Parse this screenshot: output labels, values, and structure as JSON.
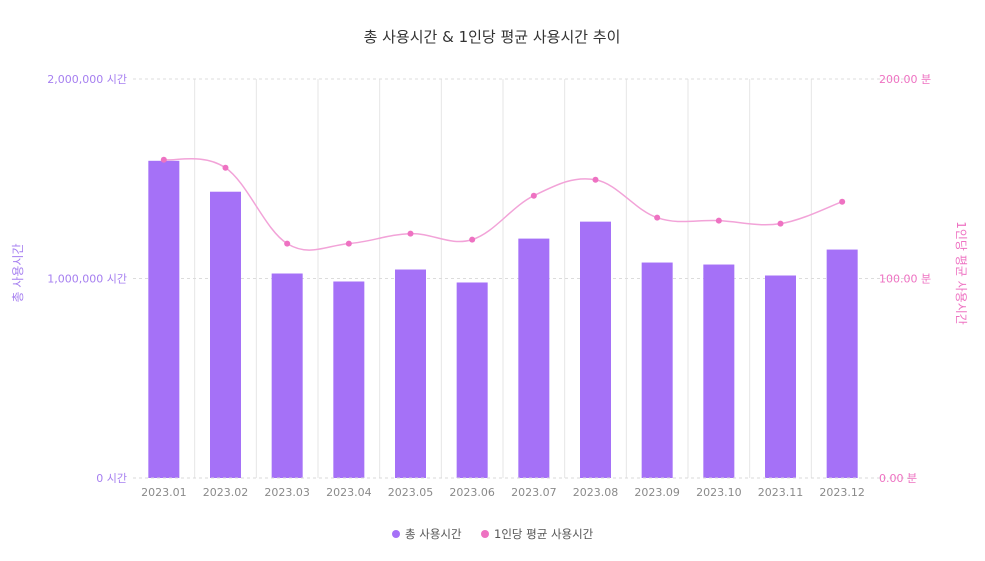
{
  "chart_data": {
    "type": "bar",
    "title": "총 사용시간 & 1인당 평균 사용시간 추이",
    "categories": [
      "2023.01",
      "2023.02",
      "2023.03",
      "2023.04",
      "2023.05",
      "2023.06",
      "2023.07",
      "2023.08",
      "2023.09",
      "2023.10",
      "2023.11",
      "2023.12"
    ],
    "series": [
      {
        "name": "총 사용시간",
        "type": "bar",
        "axis": "left",
        "color": "#a571f7",
        "values": [
          1590000,
          1435000,
          1025000,
          985000,
          1045000,
          980000,
          1200000,
          1285000,
          1080000,
          1070000,
          1015000,
          1145000
        ]
      },
      {
        "name": "1인당 평균 사용시간",
        "type": "line",
        "axis": "right",
        "color": "#ee72c2",
        "values": [
          159.5,
          155.5,
          117.5,
          117.5,
          122.5,
          119.5,
          141.5,
          149.5,
          130.5,
          129.0,
          127.5,
          138.5
        ]
      }
    ],
    "y_left": {
      "label": "총 사용시간",
      "min": 0,
      "max": 2000000,
      "ticks": [
        0,
        1000000,
        2000000
      ],
      "tick_labels": [
        "0 시간",
        "1,000,000 시간",
        "2,000,000 시간"
      ]
    },
    "y_right": {
      "label": "1인당 평균 사용시간",
      "min": 0,
      "max": 200,
      "ticks": [
        0,
        100,
        200
      ],
      "tick_labels": [
        "0.00 분",
        "100.00 분",
        "200.00 분"
      ]
    },
    "grid": true,
    "legend": "bottom-center"
  }
}
